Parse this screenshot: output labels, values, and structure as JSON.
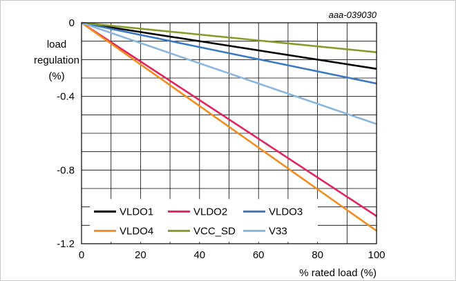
{
  "figure_id": "aaa-039030",
  "chart_data": {
    "type": "line",
    "title": "",
    "xlabel": "% rated load (%)",
    "ylabel_lines": [
      "load",
      "regulation",
      "(%)"
    ],
    "xlim": [
      0,
      100
    ],
    "ylim": [
      -1.2,
      0
    ],
    "xticks": [
      0,
      20,
      40,
      60,
      80,
      100
    ],
    "yticks": [
      0,
      -0.4,
      -0.8,
      -1.2
    ],
    "ytick_labels": [
      "0",
      "-0.4",
      "-0.8",
      "-1.2"
    ],
    "grid": true,
    "grid_x_step": 10,
    "grid_y_step": 0.1,
    "legend_position": "bottom-left",
    "series": [
      {
        "name": "VLDO1",
        "color": "#000000",
        "x": [
          0,
          100
        ],
        "y": [
          0,
          -0.25
        ]
      },
      {
        "name": "VLDO2",
        "color": "#e0245e",
        "x": [
          0,
          100
        ],
        "y": [
          0,
          -1.05
        ]
      },
      {
        "name": "VLDO3",
        "color": "#3a78c3",
        "x": [
          0,
          100
        ],
        "y": [
          0,
          -0.33
        ]
      },
      {
        "name": "VLDO4",
        "color": "#f28c1e",
        "x": [
          0,
          100
        ],
        "y": [
          0,
          -1.13
        ]
      },
      {
        "name": "VCC_SD",
        "color": "#8a9a2a",
        "x": [
          0,
          100
        ],
        "y": [
          0,
          -0.16
        ]
      },
      {
        "name": "V33",
        "color": "#8ab6de",
        "x": [
          0,
          100
        ],
        "y": [
          0,
          -0.55
        ]
      }
    ]
  }
}
